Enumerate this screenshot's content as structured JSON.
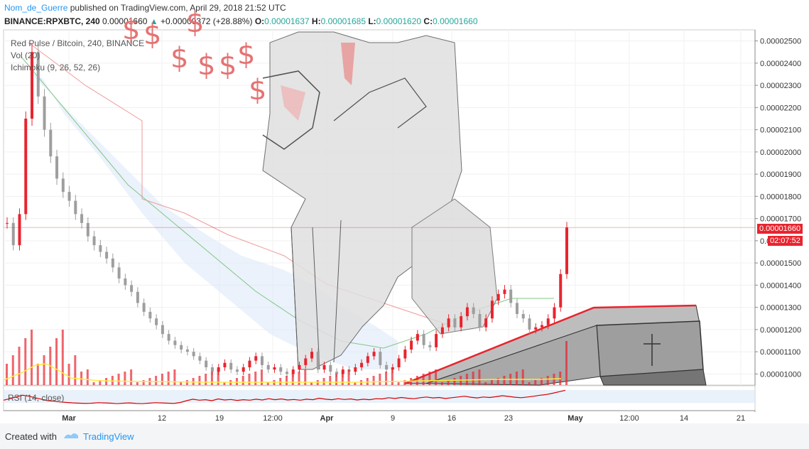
{
  "header": {
    "author": "Nom_de_Guerre",
    "publish_text": " published on TradingView.com, April 29, 2018 21:52 UTC",
    "symbol": "BINANCE:RPXBTC, 240",
    "last": "0.00001660",
    "change_arrow": "▲",
    "change": "+0.00000372 (+28.88%)",
    "open_label": "O:",
    "open": "0.00001637",
    "high_label": "H:",
    "high": "0.00001685",
    "low_label": "L:",
    "low": "0.00001620",
    "close_label": "C:",
    "close": "0.00001660"
  },
  "legend": {
    "title": "Red Pulse / Bitcoin, 240, BINANCE",
    "volume": "Vol (20)",
    "ichimoku": "Ichimoku (9, 26, 52, 26)",
    "rsi": "RSI (14, close)"
  },
  "price_tags": {
    "current": "0.00001660",
    "countdown": "02:07:52"
  },
  "dollar_signs": [
    "$",
    "$",
    "$",
    "$",
    "$",
    "$",
    "$",
    "$"
  ],
  "footer": {
    "created_with": "Created with",
    "brand": "TradingView"
  },
  "colors": {
    "up": "#26a69a",
    "down_candle": "#e8242e",
    "bear_candle": "#9e9e9e",
    "kumo_fill": "#dbe7f7",
    "price_line": "#e8242e",
    "rsi_line": "#d50000",
    "volume_ma": "#ffeb3b"
  },
  "chart_data": {
    "type": "candlestick",
    "title": "Red Pulse / Bitcoin, 240, BINANCE",
    "y_axis": {
      "ylim": [
        9.5e-06,
        2.55e-05
      ],
      "ticks": [
        "0.00002500",
        "0.00002400",
        "0.00002300",
        "0.00002200",
        "0.00002100",
        "0.00002000",
        "0.00001900",
        "0.00001800",
        "0.00001700",
        "0.00001600",
        "0.00001500",
        "0.00001400",
        "0.00001300",
        "0.00001200",
        "0.00001100",
        "0.00001000"
      ]
    },
    "x_axis": {
      "ticks": [
        "Mar",
        "12",
        "19",
        "12:00",
        "Apr",
        "9",
        "16",
        "23",
        "May",
        "12:00",
        "14",
        "21"
      ]
    },
    "last_price": 1.66e-05,
    "price_series": [
      1.68e-05,
      1.58e-05,
      1.72e-05,
      2.15e-05,
      2.45e-05,
      2.25e-05,
      2.1e-05,
      1.98e-05,
      1.88e-05,
      1.82e-05,
      1.78e-05,
      1.72e-05,
      1.68e-05,
      1.62e-05,
      1.58e-05,
      1.55e-05,
      1.52e-05,
      1.48e-05,
      1.43e-05,
      1.4e-05,
      1.37e-05,
      1.32e-05,
      1.28e-05,
      1.25e-05,
      1.22e-05,
      1.18e-05,
      1.15e-05,
      1.13e-05,
      1.11e-05,
      1.1e-05,
      1.08e-05,
      1.06e-05,
      1.03e-05,
      1.01e-05,
      1.03e-05,
      1.05e-05,
      1.02e-05,
      1.01e-05,
      1.03e-05,
      1.06e-05,
      1.08e-05,
      1.04e-05,
      1.02e-05,
      1.03e-05,
      1.01e-05,
      1e-05,
      1.02e-05,
      1.04e-05,
      1.07e-05,
      1.1e-05,
      1.02e-05,
      1.04e-05,
      1.01e-05,
      1e-05,
      1.02e-05,
      1.01e-05,
      1.03e-05,
      1.05e-05,
      1.08e-05,
      1.1e-05,
      1.04e-05,
      1.02e-05,
      1.03e-05,
      1.07e-05,
      1.11e-05,
      1.15e-05,
      1.18e-05,
      1.13e-05,
      1.12e-05,
      1.18e-05,
      1.21e-05,
      1.25e-05,
      1.21e-05,
      1.26e-05,
      1.3e-05,
      1.27e-05,
      1.21e-05,
      1.25e-05,
      1.33e-05,
      1.36e-05,
      1.38e-05,
      1.32e-05,
      1.27e-05,
      1.25e-05,
      1.2e-05,
      1.21e-05,
      1.22e-05,
      1.25e-05,
      1.3e-05,
      1.45e-05,
      1.66e-05
    ],
    "rsi_series": [
      42,
      48,
      55,
      62,
      58,
      52,
      46,
      40,
      38,
      35,
      33,
      31,
      30,
      29,
      30,
      32,
      31,
      30,
      28,
      30,
      31,
      29,
      28,
      30,
      32,
      31,
      30,
      29,
      33,
      40,
      46,
      42,
      44,
      40,
      47,
      43,
      45,
      41,
      44,
      42,
      46,
      43,
      48,
      44,
      47,
      43,
      45,
      42,
      46,
      44,
      50,
      46,
      44,
      48,
      45,
      47,
      43,
      46,
      44,
      48,
      47,
      52,
      49,
      53,
      50,
      48,
      52,
      55,
      51,
      53,
      49,
      52,
      55,
      58,
      54,
      51,
      55,
      53,
      56,
      60,
      57,
      54,
      52,
      55,
      58,
      62,
      65,
      70,
      76,
      82
    ]
  }
}
